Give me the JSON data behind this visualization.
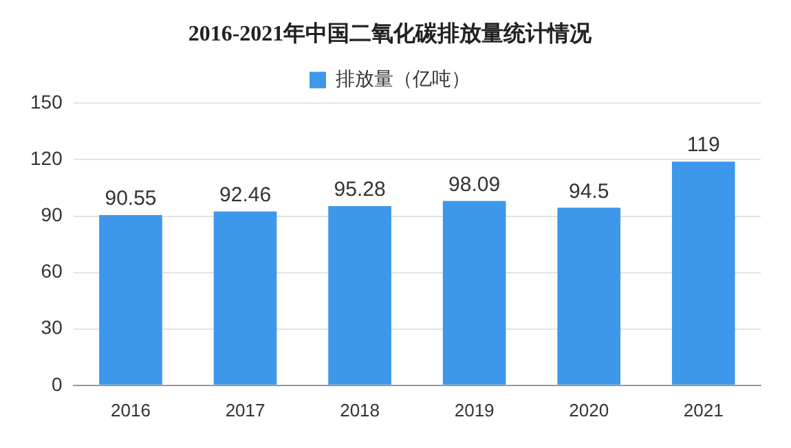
{
  "chart_data": {
    "type": "bar",
    "title": "2016-2021年中国二氧化碳排放量统计情况",
    "categories": [
      "2016",
      "2017",
      "2018",
      "2019",
      "2020",
      "2021"
    ],
    "series": [
      {
        "name": "排放量（亿吨）",
        "color": "#3d97ea",
        "values": [
          90.55,
          92.46,
          95.28,
          98.09,
          94.5,
          119
        ]
      }
    ],
    "ylim": [
      0,
      150
    ],
    "yticks": [
      0,
      30,
      60,
      90,
      120,
      150
    ],
    "grid": "y",
    "legend": "top",
    "data_labels": true
  }
}
